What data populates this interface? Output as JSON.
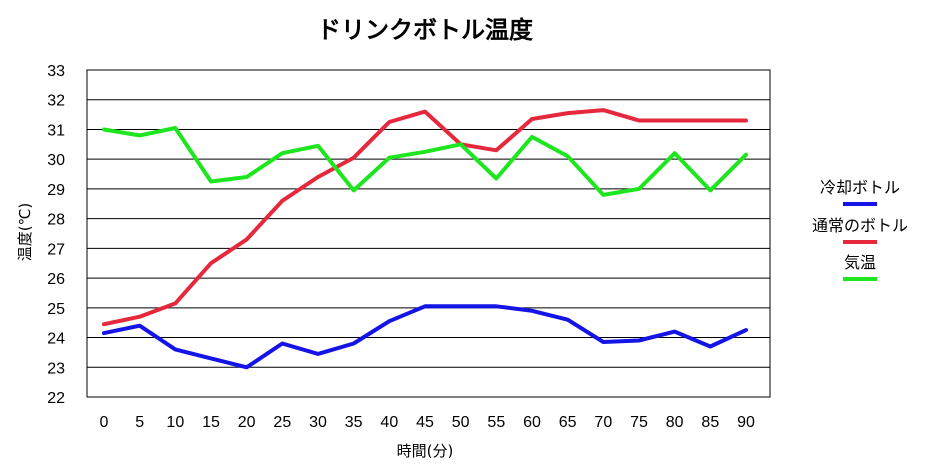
{
  "chart_data": {
    "type": "line",
    "title": "ドリンクボトル温度",
    "xlabel": "時間(分)",
    "ylabel": "温度(℃)",
    "x": [
      0,
      5,
      10,
      15,
      20,
      25,
      30,
      35,
      40,
      45,
      50,
      55,
      60,
      65,
      70,
      75,
      80,
      85,
      90
    ],
    "ylim": [
      22,
      33
    ],
    "yticks": [
      22,
      23,
      24,
      25,
      26,
      27,
      28,
      29,
      30,
      31,
      32,
      33
    ],
    "grid": "horizontal",
    "legend_position": "right",
    "series": [
      {
        "name": "冷却ボトル",
        "color": "#1414e6",
        "values": [
          24.15,
          24.4,
          23.6,
          23.3,
          23.0,
          23.8,
          23.45,
          23.8,
          24.55,
          25.05,
          25.05,
          25.05,
          24.9,
          24.6,
          23.85,
          23.9,
          24.2,
          23.7,
          24.25
        ]
      },
      {
        "name": "通常のボトル",
        "color": "#e6283c",
        "values": [
          24.45,
          24.7,
          25.15,
          26.5,
          27.3,
          28.6,
          29.4,
          30.05,
          31.25,
          31.6,
          30.5,
          30.3,
          31.35,
          31.55,
          31.65,
          31.3,
          31.3,
          31.3,
          31.3
        ]
      },
      {
        "name": "気温",
        "color": "#1ee61e",
        "values": [
          31.0,
          30.8,
          31.05,
          29.25,
          29.4,
          30.2,
          30.45,
          28.95,
          30.05,
          30.25,
          30.5,
          29.35,
          30.75,
          30.1,
          28.8,
          29.0,
          30.2,
          28.95,
          30.15
        ]
      }
    ]
  }
}
